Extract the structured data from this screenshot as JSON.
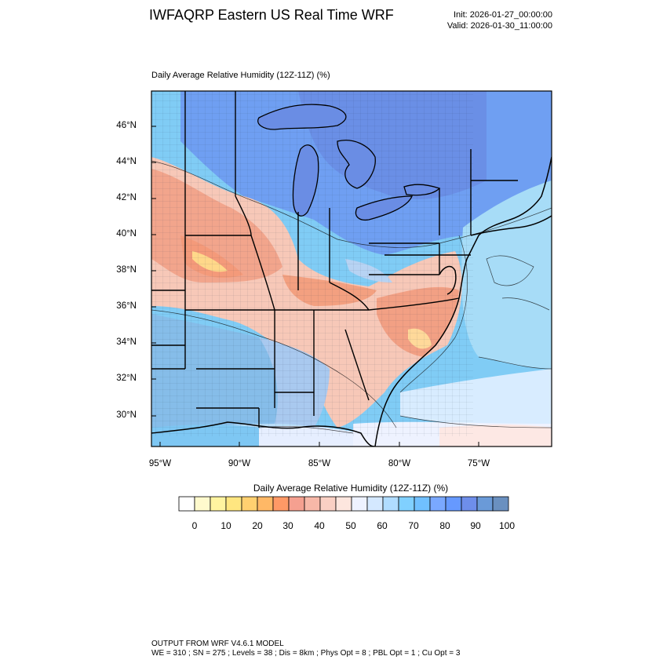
{
  "header": {
    "title": "IWFAQRP Eastern US Real Time WRF",
    "init": "Init: 2026-01-27_00:00:00",
    "valid": "Valid: 2026-01-30_11:00:00"
  },
  "map": {
    "title": "Daily Average Relative Humidity (12Z-11Z)   (%)",
    "lat_labels": [
      "46°N",
      "44°N",
      "42°N",
      "40°N",
      "38°N",
      "36°N",
      "34°N",
      "32°N",
      "30°N"
    ],
    "lon_labels": [
      "95°W",
      "90°W",
      "85°W",
      "80°W",
      "75°W"
    ]
  },
  "colorbar": {
    "title": "Daily Average Relative Humidity (12Z-11Z)  (%)",
    "ticks": [
      "0",
      "10",
      "20",
      "30",
      "40",
      "50",
      "60",
      "70",
      "80",
      "90",
      "100"
    ],
    "colors": [
      "#ffffff",
      "#fffacd",
      "#fff4a0",
      "#ffe680",
      "#ffd070",
      "#ffb866",
      "#ff9966",
      "#f5a090",
      "#f7b8a8",
      "#fad0c4",
      "#fde6de",
      "#eef2ff",
      "#d4e8ff",
      "#b0dcff",
      "#80d0ff",
      "#70c0ff",
      "#7aa8ff",
      "#6699ff",
      "#6e8eea",
      "#6a9ad8",
      "#6a90c0"
    ]
  },
  "footer": {
    "line1": "OUTPUT FROM WRF V4.6.1 MODEL",
    "line2": "WE = 310 ; SN = 275 ; Levels = 38 ; Dis = 8km ; Phys Opt = 8 ; PBL Opt = 1 ; Cu Opt = 3"
  }
}
